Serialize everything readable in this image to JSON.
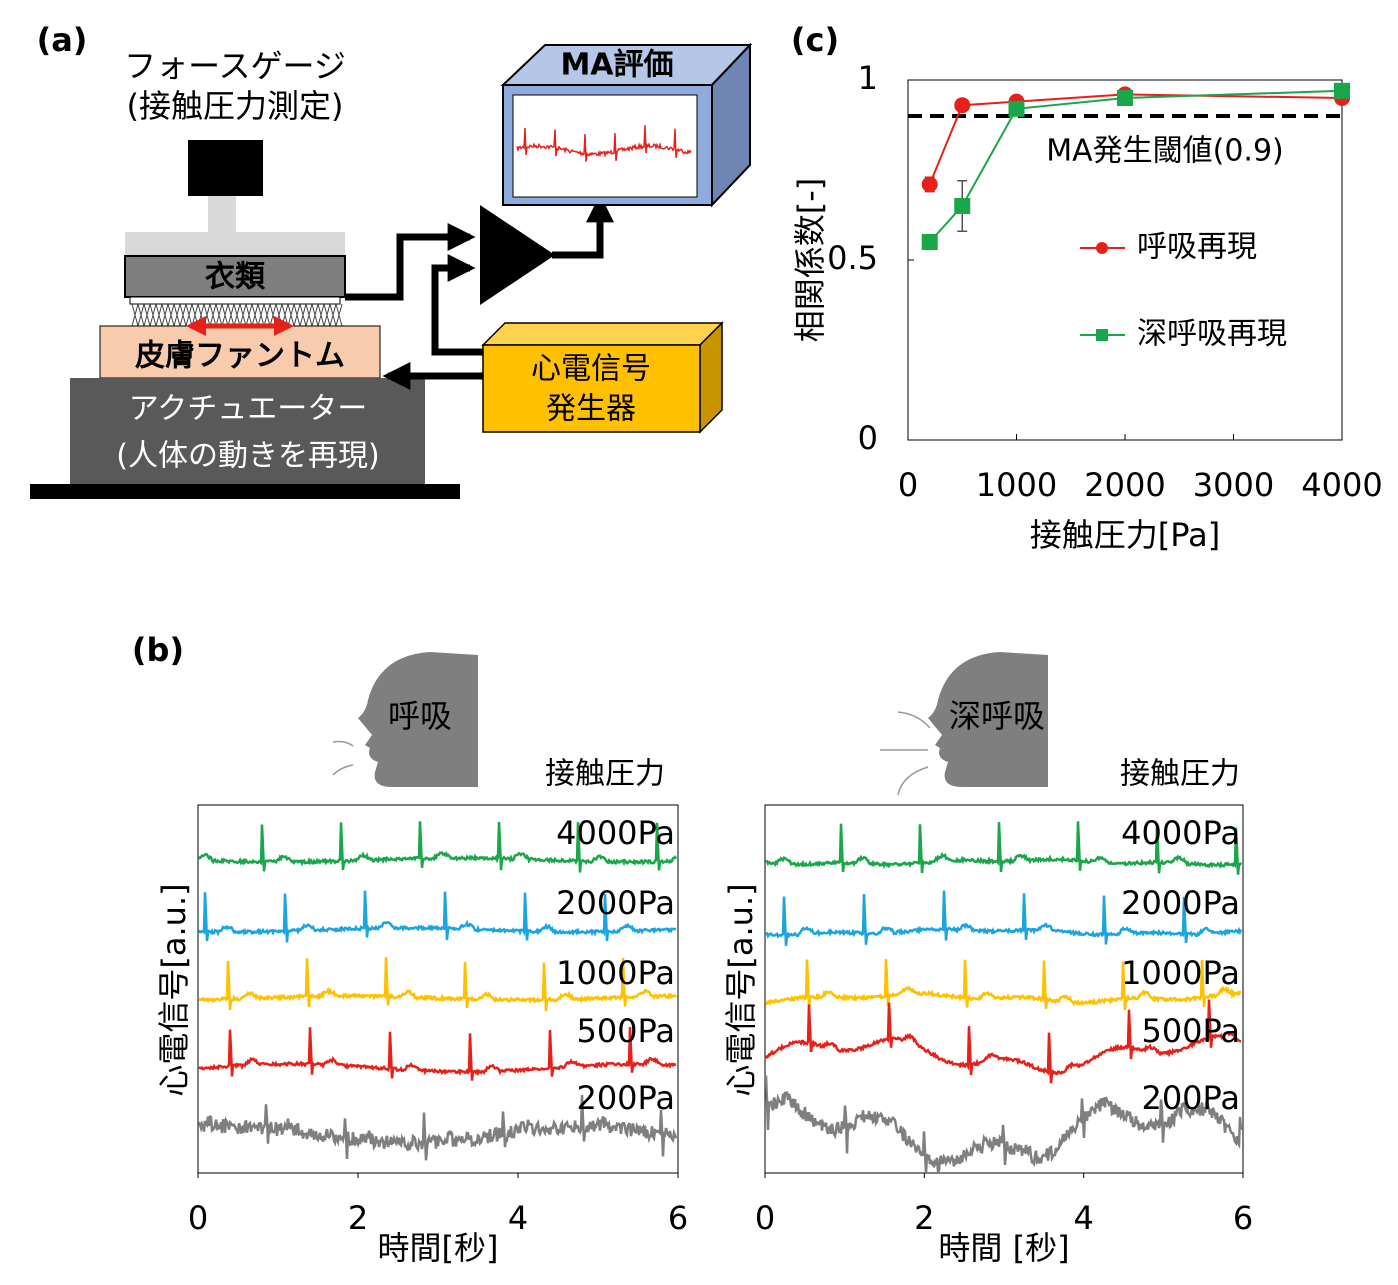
{
  "diagram": {
    "panel_label": "(a)",
    "force_gauge": [
      "フォースゲージ",
      "(接触圧力測定)"
    ],
    "clothing": "衣類",
    "skin_phantom": "皮膚ファントム",
    "actuator": [
      "アクチュエーター",
      "(人体の動きを再現)"
    ],
    "ecg_generator": [
      "心電信号",
      "発生器"
    ],
    "evaluation": "MA評価"
  },
  "chart_data": [
    {
      "type": "line",
      "panel_label": "(c)",
      "x_label": "接触圧力[Pa]",
      "y_label": "相関係数[-]",
      "xlim": [
        0,
        4000
      ],
      "xticks": [
        0,
        1000,
        2000,
        3000,
        4000
      ],
      "ylim": [
        0,
        1
      ],
      "yticks": [
        0,
        0.5,
        1
      ],
      "threshold": {
        "value": 0.9,
        "label": "MA発生閾値(0.9)"
      },
      "x": [
        200,
        500,
        1000,
        2000,
        4000
      ],
      "series": [
        {
          "name": "呼吸再現",
          "color": "#e8201a",
          "marker": "circle",
          "values": [
            0.71,
            0.93,
            0.94,
            0.96,
            0.95
          ],
          "errors": [
            0.02,
            0,
            0,
            0,
            0
          ]
        },
        {
          "name": "深呼吸再現",
          "color": "#1aa64a",
          "marker": "square",
          "values": [
            0.55,
            0.65,
            0.92,
            0.95,
            0.97
          ],
          "errors": [
            0.02,
            0.07,
            0,
            0,
            0
          ]
        }
      ]
    },
    {
      "type": "signal",
      "panel_label": "(b)",
      "icon_label": "呼吸",
      "header": "接触圧力",
      "x_label": "時間[秒]",
      "y_label": "心電信号[a.u.]",
      "xlim": [
        0,
        6
      ],
      "xticks": [
        0,
        2,
        4,
        6
      ],
      "series": [
        {
          "name": "4000Pa",
          "color": "#1aa64a"
        },
        {
          "name": "2000Pa",
          "color": "#1aa4e0"
        },
        {
          "name": "1000Pa",
          "color": "#ffc000"
        },
        {
          "name": "500Pa",
          "color": "#e8201a"
        },
        {
          "name": "200Pa",
          "color": "#7f7f7f"
        }
      ]
    },
    {
      "type": "signal",
      "icon_label": "深呼吸",
      "header": "接触圧力",
      "x_label": "時間 [秒]",
      "y_label": "心電信号[a.u.]",
      "xlim": [
        0,
        6
      ],
      "xticks": [
        0,
        2,
        4,
        6
      ],
      "series": [
        {
          "name": "4000Pa",
          "color": "#1aa64a"
        },
        {
          "name": "2000Pa",
          "color": "#1aa4e0"
        },
        {
          "name": "1000Pa",
          "color": "#ffc000"
        },
        {
          "name": "500Pa",
          "color": "#e8201a"
        },
        {
          "name": "200Pa",
          "color": "#7f7f7f"
        }
      ]
    }
  ]
}
